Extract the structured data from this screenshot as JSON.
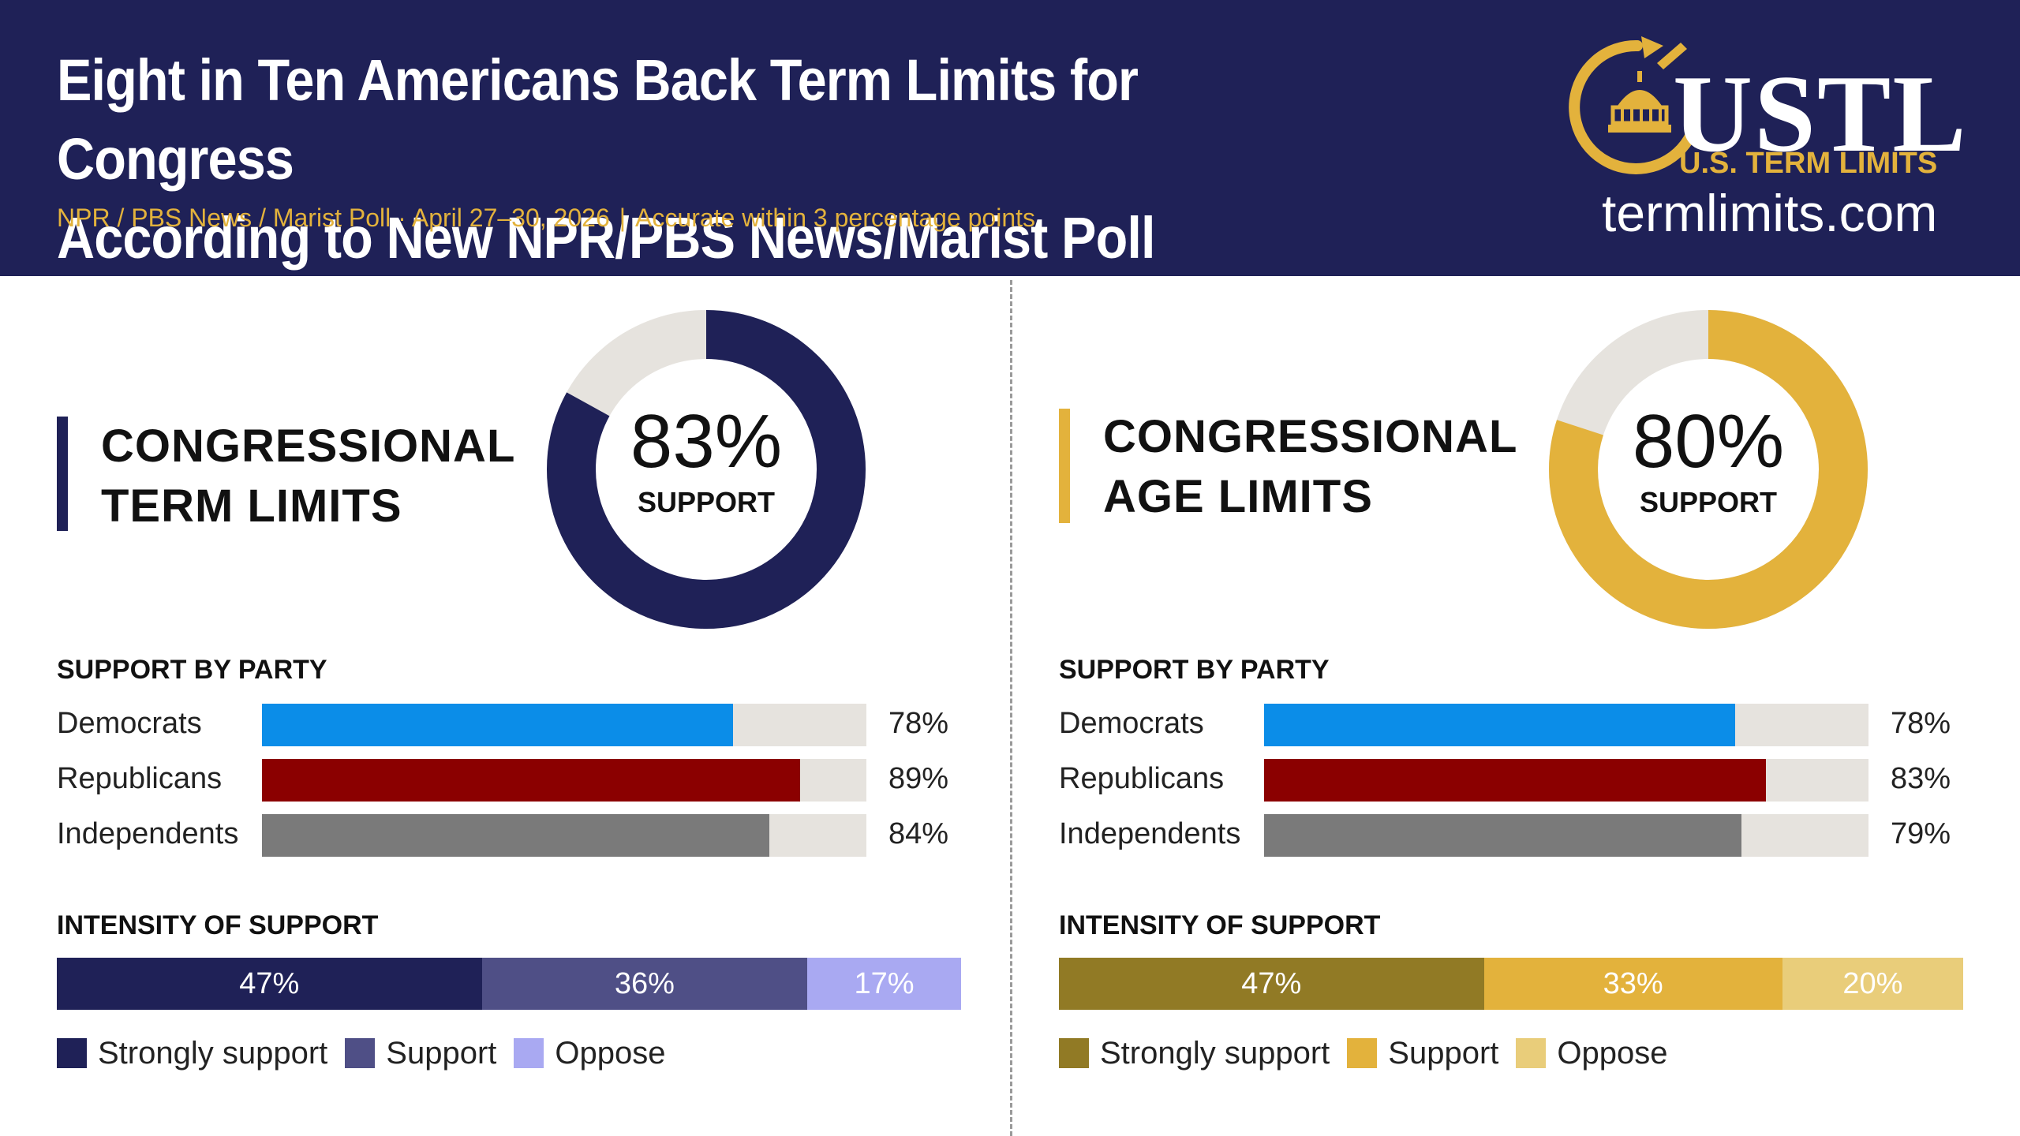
{
  "header": {
    "title_line1": "Eight in Ten Americans Back Term Limits for Congress",
    "title_line2": "According to New NPR/PBS News/Marist Poll",
    "subtitle_source": "NPR / PBS News / Marist Poll · April 27–30, 2026",
    "subtitle_sep": "|",
    "subtitle_accuracy": "Accurate within 3 percentage points"
  },
  "logo": {
    "word": "USTL",
    "sub": "U.S. TERM LIMITS",
    "url": "termlimits.com"
  },
  "colors": {
    "navy": "#1f2157",
    "gold": "#e3b23c",
    "track": "#e6e3de",
    "democrats": "#0b8de8",
    "republicans": "#8b0000",
    "independents": "#7a7a7a"
  },
  "chart_data": [
    {
      "type": "pie",
      "title": "CONGRESSIONAL TERM LIMITS",
      "values": [
        83,
        17
      ],
      "center_value": "83%",
      "center_label": "SUPPORT",
      "colors": [
        "#1f2157",
        "#e6e3de"
      ]
    },
    {
      "type": "bar",
      "title": "SUPPORT BY PARTY",
      "categories": [
        "Democrats",
        "Republicans",
        "Independents"
      ],
      "values": [
        78,
        89,
        84
      ],
      "value_labels": [
        "78%",
        "89%",
        "84%"
      ],
      "colors": [
        "#0b8de8",
        "#8b0000",
        "#7a7a7a"
      ],
      "ylim": [
        0,
        100
      ]
    },
    {
      "type": "bar",
      "title": "INTENSITY OF SUPPORT",
      "categories": [
        "Strongly support",
        "Support",
        "Oppose"
      ],
      "values": [
        47,
        36,
        17
      ],
      "value_labels": [
        "47%",
        "36%",
        "17%"
      ],
      "colors": [
        "#1f2157",
        "#4f4f86",
        "#a9a9f2"
      ]
    },
    {
      "type": "pie",
      "title": "CONGRESSIONAL AGE LIMITS",
      "values": [
        80,
        20
      ],
      "center_value": "80%",
      "center_label": "SUPPORT",
      "colors": [
        "#e3b23c",
        "#e6e3de"
      ]
    },
    {
      "type": "bar",
      "title": "SUPPORT BY PARTY",
      "categories": [
        "Democrats",
        "Republicans",
        "Independents"
      ],
      "values": [
        78,
        83,
        79
      ],
      "value_labels": [
        "78%",
        "83%",
        "79%"
      ],
      "colors": [
        "#0b8de8",
        "#8b0000",
        "#7a7a7a"
      ],
      "ylim": [
        0,
        100
      ]
    },
    {
      "type": "bar",
      "title": "INTENSITY OF SUPPORT",
      "categories": [
        "Strongly support",
        "Support",
        "Oppose"
      ],
      "values": [
        47,
        33,
        20
      ],
      "value_labels": [
        "47%",
        "33%",
        "20%"
      ],
      "colors": [
        "#917a25",
        "#e3b23c",
        "#e9cd7a"
      ]
    }
  ],
  "panels": [
    {
      "title_line1": "CONGRESSIONAL",
      "title_line2": "TERM LIMITS",
      "donut_value": "83%",
      "donut_label": "SUPPORT",
      "party_heading": "SUPPORT BY PARTY",
      "party_rows": [
        {
          "label": "Democrats",
          "value": "78%"
        },
        {
          "label": "Republicans",
          "value": "89%"
        },
        {
          "label": "Independents",
          "value": "84%"
        }
      ],
      "intensity_heading": "INTENSITY OF SUPPORT",
      "intensity_segments": [
        {
          "label": "47%",
          "legend": "Strongly support"
        },
        {
          "label": "36%",
          "legend": "Support"
        },
        {
          "label": "17%",
          "legend": "Oppose"
        }
      ]
    },
    {
      "title_line1": "CONGRESSIONAL",
      "title_line2": "AGE LIMITS",
      "donut_value": "80%",
      "donut_label": "SUPPORT",
      "party_heading": "SUPPORT BY PARTY",
      "party_rows": [
        {
          "label": "Democrats",
          "value": "78%"
        },
        {
          "label": "Republicans",
          "value": "83%"
        },
        {
          "label": "Independents",
          "value": "79%"
        }
      ],
      "intensity_heading": "INTENSITY OF SUPPORT",
      "intensity_segments": [
        {
          "label": "47%",
          "legend": "Strongly support"
        },
        {
          "label": "33%",
          "legend": "Support"
        },
        {
          "label": "20%",
          "legend": "Oppose"
        }
      ]
    }
  ]
}
